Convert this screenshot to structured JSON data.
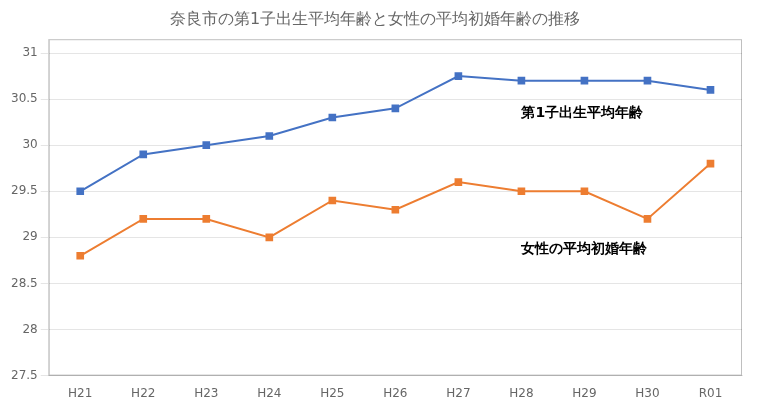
{
  "chart_data": {
    "type": "line",
    "title": "奈良市の第1子出生平均年齢と女性の平均初婚年齢の推移",
    "categories": [
      "H21",
      "H22",
      "H23",
      "H24",
      "H25",
      "H26",
      "H27",
      "H28",
      "H29",
      "H30",
      "R01"
    ],
    "series": [
      {
        "name": "第1子出生平均年齢",
        "color": "#4472C4",
        "marker": "square",
        "values": [
          29.5,
          29.9,
          30.0,
          30.1,
          30.3,
          30.4,
          30.75,
          30.7,
          30.7,
          30.7,
          30.6
        ]
      },
      {
        "name": "女性の平均初婚年齢",
        "color": "#ED7D31",
        "marker": "square",
        "values": [
          28.8,
          29.2,
          29.2,
          29.0,
          29.4,
          29.3,
          29.6,
          29.5,
          29.5,
          29.2,
          29.8
        ]
      }
    ],
    "ylim": [
      27.5,
      31.15
    ],
    "yticks": [
      27.5,
      28,
      28.5,
      29,
      29.5,
      30,
      30.5,
      31
    ],
    "grid": true,
    "annotations": [
      {
        "text": "第1子出生平均年齢",
        "x": "H28",
        "y": 30.35
      },
      {
        "text": "女性の平均初婚年齢",
        "x": "H28",
        "y": 28.87
      }
    ]
  }
}
